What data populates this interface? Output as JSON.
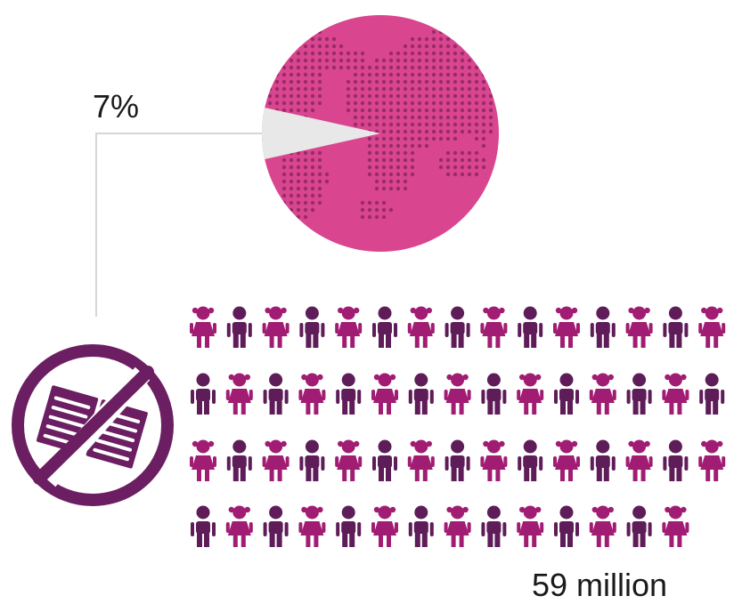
{
  "globe": {
    "share_label": "7%",
    "share_fraction": 0.07
  },
  "people": {
    "total_label": "59 million",
    "rows": [
      15,
      15,
      15,
      14
    ],
    "pattern_start": [
      "girl",
      "boy",
      "girl",
      "boy"
    ]
  },
  "icon": "no-books-icon",
  "colors": {
    "magenta": "#d9468f",
    "dot": "#9b2a6b",
    "slice": "#e8e8e8",
    "girl": "#a11d73",
    "boy": "#5e1c58",
    "icon": "#6b1e61",
    "connector": "#d6d6d6"
  }
}
